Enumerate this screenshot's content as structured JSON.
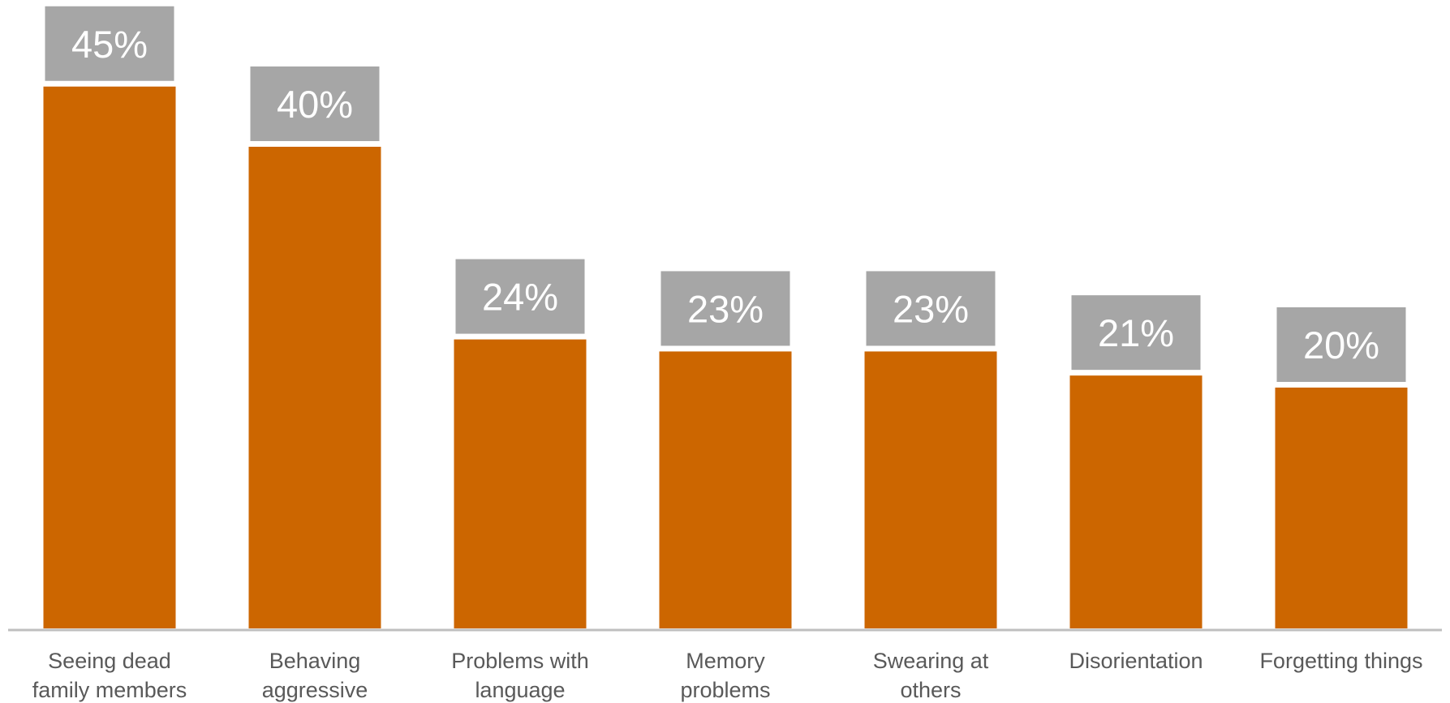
{
  "chart_data": {
    "type": "bar",
    "categories": [
      [
        "Seeing dead",
        "family members"
      ],
      [
        "Behaving",
        "aggressive"
      ],
      [
        "Problems with",
        "language"
      ],
      [
        "Memory",
        "problems"
      ],
      [
        "Swearing at",
        "others"
      ],
      [
        "Disorientation"
      ],
      [
        "Forgetting things"
      ]
    ],
    "values": [
      45,
      40,
      24,
      23,
      23,
      21,
      20
    ],
    "data_labels": [
      "45%",
      "40%",
      "24%",
      "23%",
      "23%",
      "21%",
      "20%"
    ],
    "value_unit": "%",
    "ylim": [
      0,
      100
    ],
    "grid": false,
    "legend": "none",
    "colors": {
      "bar": "#CC6600",
      "label_box": "#A6A6A6",
      "label_text": "#FFFFFF",
      "axis": "#BFBFBF",
      "category_text": "#595959"
    }
  }
}
